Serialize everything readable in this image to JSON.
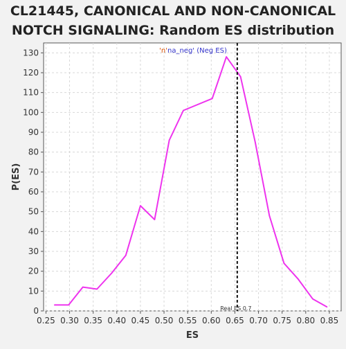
{
  "chart_data": {
    "type": "line",
    "title_lines": [
      "CL21445, CANONICAL AND NON-CANONICAL",
      "NOTCH SIGNALING: Random ES distribution"
    ],
    "xlabel": "ES",
    "ylabel": "P(ES)",
    "xlim": [
      0.245,
      0.875
    ],
    "ylim": [
      0,
      135
    ],
    "x_ticks": [
      0.25,
      0.3,
      0.35,
      0.4,
      0.45,
      0.5,
      0.55,
      0.6,
      0.65,
      0.7,
      0.75,
      0.8,
      0.85
    ],
    "x_tick_labels": [
      "0.25",
      "0.30",
      "0.35",
      "0.40",
      "0.45",
      "0.50",
      "0.55",
      "0.60",
      "0.65",
      "0.70",
      "0.75",
      "0.80",
      "0.85"
    ],
    "y_ticks": [
      0,
      10,
      20,
      30,
      40,
      50,
      60,
      70,
      80,
      90,
      100,
      110,
      120,
      130
    ],
    "y_tick_labels": [
      "0",
      "10",
      "20",
      "30",
      "40",
      "50",
      "60",
      "70",
      "80",
      "90",
      "100",
      "110",
      "120",
      "130"
    ],
    "grid": true,
    "legend": {
      "position": "top-center",
      "prefix": "'n'",
      "rest": "na_neg' (Neg ES)",
      "prefix_color": "#d94f00",
      "rest_color": "#3333cc"
    },
    "series": [
      {
        "name": "'n'na_neg' (Neg ES)",
        "color": "#ee33ee",
        "x": [
          0.268,
          0.298,
          0.328,
          0.358,
          0.389,
          0.419,
          0.45,
          0.48,
          0.511,
          0.541,
          0.602,
          0.632,
          0.662,
          0.693,
          0.723,
          0.754,
          0.784,
          0.815,
          0.845
        ],
        "y": [
          3,
          3,
          12,
          11,
          19,
          28,
          53,
          46,
          86,
          101,
          107,
          128,
          118,
          85,
          48,
          24,
          16,
          6,
          2
        ]
      }
    ],
    "reference_line": {
      "x": 0.655,
      "label": "Real ES 0.7",
      "style": "dashed",
      "color": "#111111"
    }
  }
}
